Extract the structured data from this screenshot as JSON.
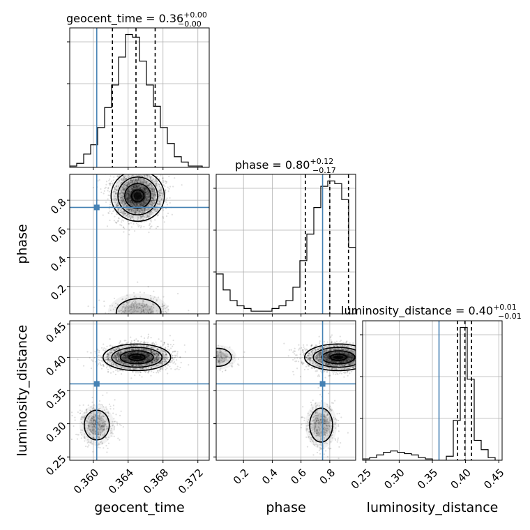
{
  "chart_data": {
    "type": "corner",
    "parameters": [
      "geocent_time",
      "phase",
      "luminosity_distance"
    ],
    "truths": {
      "geocent_time": 0.3604,
      "phase": 0.75,
      "luminosity_distance": 0.36
    },
    "truth_color": "#4682b4",
    "titles": [
      {
        "label": "geocent_time",
        "median": "0.36",
        "plus": "+0.00",
        "minus": "−0.00"
      },
      {
        "label": "phase",
        "median": "0.80",
        "plus": "+0.12",
        "minus": "−0.17"
      },
      {
        "label": "luminosity_distance",
        "median": "0.40",
        "plus": "+0.01",
        "minus": "−0.01"
      }
    ],
    "axis_ranges": {
      "geocent_time": [
        0.3573,
        0.3733
      ],
      "phase": [
        0.01,
        0.98
      ],
      "luminosity_distance": [
        0.245,
        0.455
      ]
    },
    "ticks": {
      "geocent_time": {
        "values": [
          0.36,
          0.364,
          0.368,
          0.372
        ],
        "labels": [
          "0.360",
          "0.364",
          "0.368",
          "0.372"
        ]
      },
      "phase": {
        "values": [
          0.2,
          0.4,
          0.6,
          0.8
        ],
        "labels": [
          "0.2",
          "0.4",
          "0.6",
          "0.8"
        ]
      },
      "luminosity_distance": {
        "values": [
          0.25,
          0.3,
          0.35,
          0.4,
          0.45
        ],
        "labels": [
          "0.25",
          "0.30",
          "0.35",
          "0.40",
          "0.45"
        ]
      }
    },
    "quantiles": {
      "geocent_time": [
        0.3622,
        0.3649,
        0.3671
      ],
      "phase": [
        0.63,
        0.8,
        0.93
      ],
      "luminosity_distance": [
        0.388,
        0.399,
        0.409
      ]
    },
    "histograms": {
      "geocent_time": {
        "edges": [
          0.3573,
          0.3581,
          0.3589,
          0.3597,
          0.3605,
          0.3613,
          0.3621,
          0.3629,
          0.3637,
          0.3645,
          0.3653,
          0.3661,
          0.3669,
          0.3677,
          0.3685,
          0.3693,
          0.3701,
          0.3709,
          0.3717,
          0.3725,
          0.3733
        ],
        "counts": [
          1,
          3,
          10,
          17,
          30,
          45,
          62,
          83,
          100,
          98,
          80,
          62,
          46,
          30,
          18,
          8,
          4,
          1,
          1,
          0
        ]
      },
      "phase": {
        "edges": [
          0.01,
          0.0585,
          0.107,
          0.1555,
          0.204,
          0.2525,
          0.301,
          0.3495,
          0.398,
          0.4465,
          0.495,
          0.5435,
          0.592,
          0.6405,
          0.689,
          0.7375,
          0.786,
          0.8345,
          0.883,
          0.9315,
          0.98
        ],
        "counts": [
          30,
          18,
          10,
          6,
          4,
          2,
          2,
          2,
          4,
          6,
          10,
          20,
          40,
          60,
          80,
          96,
          100,
          98,
          86,
          50
        ]
      },
      "luminosity_distance": {
        "edges": [
          0.245,
          0.2555,
          0.266,
          0.2765,
          0.287,
          0.2975,
          0.308,
          0.3185,
          0.329,
          0.3395,
          0.35,
          0.3605,
          0.371,
          0.3815,
          0.392,
          0.4025,
          0.413,
          0.4235,
          0.434,
          0.4445,
          0.455
        ],
        "counts": [
          1,
          2,
          4,
          6,
          7,
          6,
          5,
          4,
          2,
          1,
          0,
          0,
          3,
          30,
          100,
          61,
          15,
          8,
          2,
          0
        ]
      }
    },
    "grid": true
  }
}
